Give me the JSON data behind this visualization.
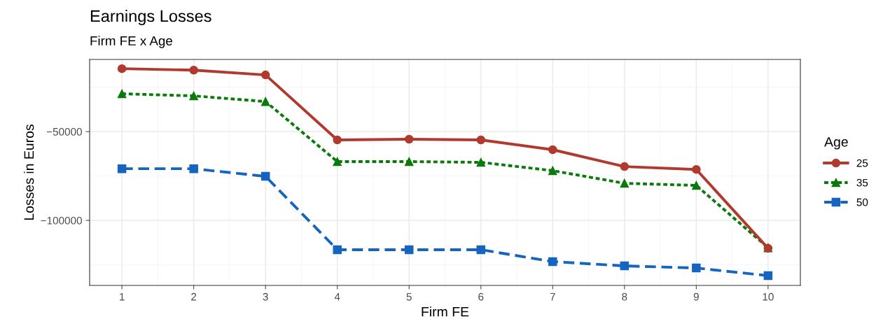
{
  "chart_data": {
    "type": "line",
    "title": "Earnings Losses",
    "subtitle": "Firm FE x Age",
    "xlabel": "Firm FE",
    "ylabel": "Losses in Euros",
    "legend_title": "Age",
    "x": [
      1,
      2,
      3,
      4,
      5,
      6,
      7,
      8,
      9,
      10
    ],
    "series": [
      {
        "name": "25",
        "color": "#b03a2e",
        "marker": "circle",
        "line_style": "solid",
        "values": [
          -14600,
          -15400,
          -18100,
          -54700,
          -54300,
          -54700,
          -60200,
          -69700,
          -71300,
          -115700
        ]
      },
      {
        "name": "35",
        "color": "#0a7a0a",
        "marker": "triangle",
        "line_style": "dotted",
        "values": [
          -28700,
          -29900,
          -33100,
          -66900,
          -66900,
          -67300,
          -72000,
          -79100,
          -80300,
          -115400
        ]
      },
      {
        "name": "50",
        "color": "#1565c0",
        "marker": "square",
        "line_style": "dashed",
        "values": [
          -70900,
          -70900,
          -75200,
          -116500,
          -116500,
          -116500,
          -123200,
          -125600,
          -126800,
          -131100
        ]
      }
    ],
    "xlim": [
      0.55,
      10.45
    ],
    "xticks": [
      1,
      2,
      3,
      4,
      5,
      6,
      7,
      8,
      9,
      10
    ],
    "ylim": [
      -136600,
      -9400
    ],
    "yticks": [
      {
        "value": -100000,
        "label": "−100000"
      },
      {
        "value": -50000,
        "label": "−50000"
      }
    ],
    "grid": true,
    "legend": "right"
  }
}
